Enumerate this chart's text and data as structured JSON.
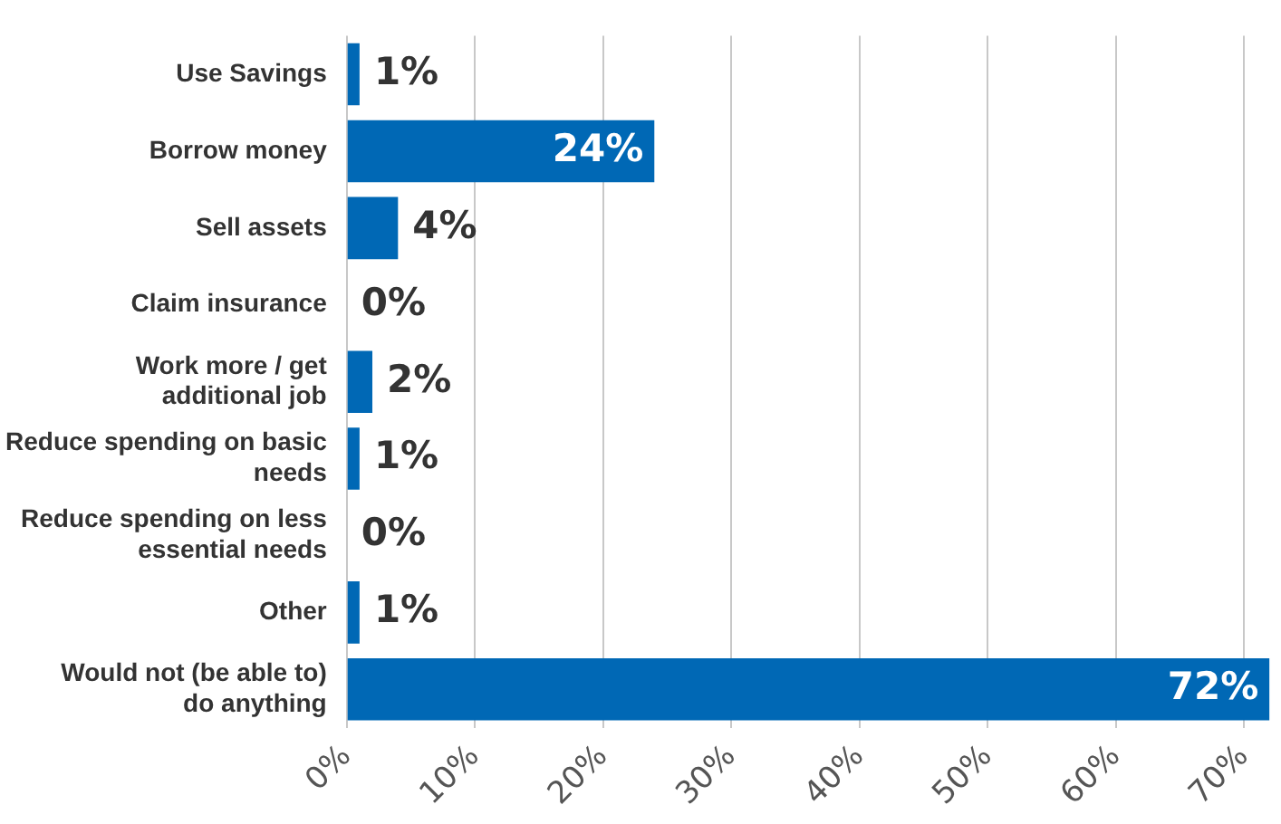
{
  "chart_data": {
    "type": "bar",
    "orientation": "horizontal",
    "categories": [
      "Use Savings",
      "Borrow money",
      "Sell assets",
      "Claim insurance",
      "Work more / get additional job",
      "Reduce spending on basic needs",
      "Reduce spending on less essential needs",
      "Other",
      "Would not (be able to) do anything"
    ],
    "values": [
      1,
      24,
      4,
      0,
      2,
      1,
      0,
      1,
      72
    ],
    "value_labels": [
      "1%",
      "24%",
      "4%",
      "0%",
      "2%",
      "1%",
      "0%",
      "1%",
      "72%"
    ],
    "color": "#0068b5",
    "xlim": [
      0,
      72
    ],
    "xticks": [
      {
        "value": 0,
        "label": "0%"
      },
      {
        "value": 10,
        "label": "10%"
      },
      {
        "value": 20,
        "label": "20%"
      },
      {
        "value": 30,
        "label": "30%"
      },
      {
        "value": 40,
        "label": "40%"
      },
      {
        "value": 50,
        "label": "50%"
      },
      {
        "value": 60,
        "label": "60%"
      },
      {
        "value": 70,
        "label": "70%"
      }
    ],
    "grid": "x",
    "legend": false
  }
}
